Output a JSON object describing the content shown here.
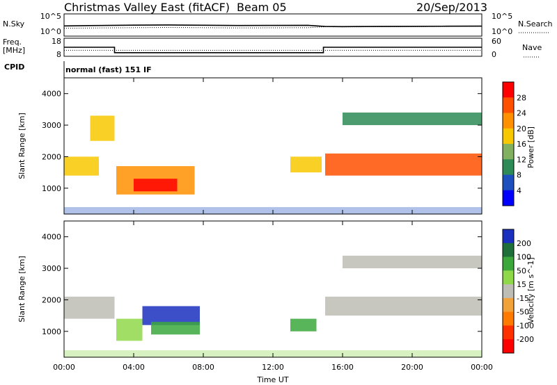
{
  "header": {
    "station": "Christmas Valley East (fitACF)",
    "beam": "Beam 05",
    "date": "20/Sep/2013"
  },
  "strip_labels": {
    "nsky": "N.Sky",
    "nsearch": "N.Search",
    "freq_line1": "Freq.",
    "freq_line2": "[MHz]",
    "nave": "Nave",
    "cpid": "CPID",
    "cpid_value": "normal (fast) 151 IF",
    "noise_top_tick": "10^5",
    "noise_bottom_tick": "10^0",
    "freq_top_tick": "18",
    "freq_bottom_tick": "8",
    "nave_top_tick": "60",
    "nave_bottom_tick": "0"
  },
  "axes": {
    "xlabel": "Time UT",
    "ylabel": "Slant Range [km]",
    "x_ticks": [
      "00:00",
      "04:00",
      "08:00",
      "12:00",
      "16:00",
      "20:00",
      "00:00"
    ],
    "y_ticks": [
      "1000",
      "2000",
      "3000",
      "4000"
    ]
  },
  "colorbars": {
    "power": {
      "label": "Power [dB]",
      "ticks": [
        "28",
        "24",
        "20",
        "16",
        "12",
        "8",
        "4"
      ],
      "colors": [
        "#ff0000",
        "#ff5000",
        "#ff9000",
        "#f7c800",
        "#80b060",
        "#2e8b57",
        "#1d4fbf",
        "#0000ff"
      ]
    },
    "velocity": {
      "label": "Velocity [m s^-1]",
      "ticks": [
        "200",
        "100",
        "50",
        "15",
        "-15",
        "-50",
        "-100",
        "-200"
      ],
      "colors": [
        "#1b2fbf",
        "#1f6f3a",
        "#3ca83c",
        "#8fd84a",
        "#bdbdb5",
        "#f2a23a",
        "#ff7a00",
        "#ff3000",
        "#ff0000"
      ]
    }
  },
  "chart_data": [
    {
      "type": "line",
      "title": "N.Sky / N.Search",
      "x_range_hours": [
        0,
        24
      ],
      "yscale": "log",
      "ylim": [
        1,
        100000
      ],
      "series": [
        {
          "name": "N.Sky",
          "x": [
            0,
            2,
            4,
            6,
            8,
            10,
            12,
            14,
            15,
            16,
            18,
            20,
            22,
            24
          ],
          "values": [
            200,
            250,
            300,
            320,
            280,
            250,
            260,
            270,
            150,
            140,
            150,
            160,
            170,
            180
          ]
        },
        {
          "name": "N.Search",
          "x": [
            0,
            2,
            4,
            6,
            8,
            10,
            12,
            14,
            15,
            16,
            18,
            20,
            22,
            24
          ],
          "values": [
            60,
            70,
            80,
            90,
            80,
            70,
            75,
            80,
            130,
            120,
            130,
            140,
            150,
            160
          ]
        }
      ]
    },
    {
      "type": "line",
      "title": "Freq. / Nave",
      "x_range_hours": [
        0,
        24
      ],
      "series": [
        {
          "name": "Freq.",
          "x": [
            0,
            2.9,
            2.9,
            14.9,
            14.9,
            24
          ],
          "values": [
            13,
            13,
            10,
            10,
            13,
            13
          ]
        },
        {
          "name": "Nave",
          "x": [
            0,
            24
          ],
          "values": [
            20,
            20
          ]
        }
      ]
    },
    {
      "type": "heatmap",
      "title": "Power [dB]",
      "xlabel": "Time UT",
      "ylabel": "Slant Range [km]",
      "x_range_hours": [
        0,
        24
      ],
      "ylim": [
        180,
        4500
      ],
      "clim": [
        0,
        30
      ],
      "regions": [
        {
          "t": [
            0.0,
            2.0
          ],
          "r": [
            1400,
            2000
          ],
          "level": 18
        },
        {
          "t": [
            1.5,
            2.9
          ],
          "r": [
            2500,
            3300
          ],
          "level": 16
        },
        {
          "t": [
            3.0,
            7.5
          ],
          "r": [
            800,
            1700
          ],
          "level": 20
        },
        {
          "t": [
            4.0,
            6.5
          ],
          "r": [
            900,
            1300
          ],
          "level": 28
        },
        {
          "t": [
            13.0,
            14.8
          ],
          "r": [
            1500,
            2000
          ],
          "level": 18
        },
        {
          "t": [
            15.0,
            24.0
          ],
          "r": [
            1400,
            2100
          ],
          "level": 24
        },
        {
          "t": [
            16.0,
            24.0
          ],
          "r": [
            3000,
            3400
          ],
          "level": 8
        }
      ]
    },
    {
      "type": "heatmap",
      "title": "Velocity [m s^-1]",
      "xlabel": "Time UT",
      "ylabel": "Slant Range [km]",
      "x_range_hours": [
        0,
        24
      ],
      "ylim": [
        180,
        4500
      ],
      "clim": [
        -200,
        200
      ],
      "regions": [
        {
          "t": [
            0.0,
            2.9
          ],
          "r": [
            1400,
            2100
          ],
          "level": 0
        },
        {
          "t": [
            3.0,
            4.5
          ],
          "r": [
            700,
            1400
          ],
          "level": 30
        },
        {
          "t": [
            4.5,
            7.8
          ],
          "r": [
            1200,
            1800
          ],
          "level": 200
        },
        {
          "t": [
            5.0,
            7.8
          ],
          "r": [
            900,
            1300
          ],
          "level": 60
        },
        {
          "t": [
            13.0,
            14.5
          ],
          "r": [
            1000,
            1400
          ],
          "level": 60
        },
        {
          "t": [
            15.0,
            24.0
          ],
          "r": [
            1500,
            2100
          ],
          "level": 0
        },
        {
          "t": [
            16.0,
            24.0
          ],
          "r": [
            3000,
            3400
          ],
          "level": 0
        }
      ]
    }
  ]
}
